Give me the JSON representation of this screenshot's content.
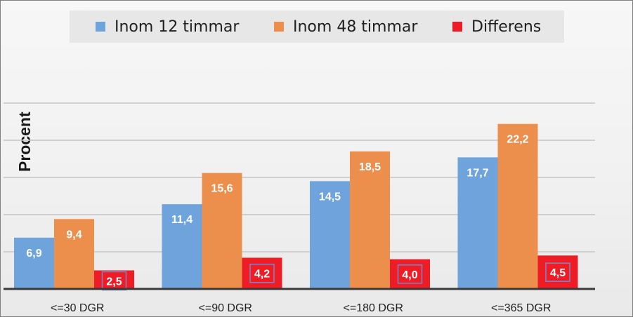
{
  "chart_data": {
    "type": "bar",
    "categories": [
      "<=30 DGR",
      "<=90 DGR",
      "<=180 DGR",
      "<=365 DGR"
    ],
    "series": [
      {
        "name": "Inom 12 timmar",
        "values": [
          6.9,
          11.4,
          14.5,
          17.7
        ],
        "labels": [
          "6,9",
          "11,4",
          "14,5",
          "17,7"
        ],
        "color": "#6fa3db"
      },
      {
        "name": "Inom 48 timmar",
        "values": [
          9.4,
          15.6,
          18.5,
          22.2
        ],
        "labels": [
          "9,4",
          "15,6",
          "18,5",
          "22,2"
        ],
        "color": "#ec8e4c"
      },
      {
        "name": "Differens",
        "values": [
          2.5,
          4.2,
          4.0,
          4.5
        ],
        "labels": [
          "2,5",
          "4,2",
          "4,0",
          "4,5"
        ],
        "color": "#ee1c25"
      }
    ],
    "title": "",
    "xlabel": "",
    "ylabel": "Procent",
    "ylim": [
      0,
      25
    ],
    "grid": true,
    "legend_position": "top"
  }
}
